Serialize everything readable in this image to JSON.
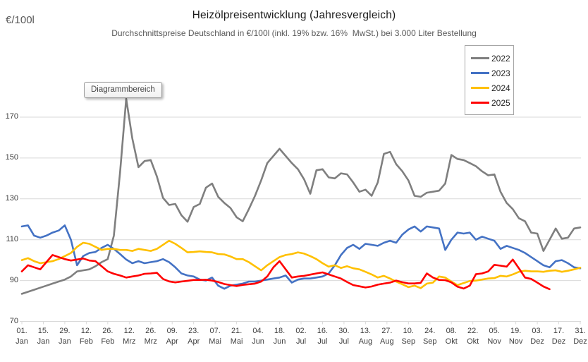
{
  "header": {
    "y_axis_unit_label": "€/100l",
    "title": "Heizölpreisentwicklung (Jahresvergleich)",
    "subtitle": "Durchschnittspreise Deutschland in €/100l (inkl. 19% bzw. 16%  MwSt.) bei 3.000 Liter Bestellung"
  },
  "tooltip": {
    "text": "Diagrammbereich"
  },
  "legend": {
    "position": "top-right",
    "items": [
      {
        "label": "2022",
        "color": "#7f7f7f"
      },
      {
        "label": "2023",
        "color": "#4472c4"
      },
      {
        "label": "2024",
        "color": "#ffc000"
      },
      {
        "label": "2025",
        "color": "#ff0000"
      }
    ]
  },
  "colors": {
    "gridline": "#d9d9d9",
    "axis_text": "#404040",
    "subtitle_text": "#595959"
  },
  "chart_data": {
    "type": "line",
    "title": "Heizölpreisentwicklung (Jahresvergleich)",
    "subtitle": "Durchschnittspreise Deutschland in €/100l (inkl. 19% bzw. 16% MwSt.) bei 3.000 Liter Bestellung",
    "ylabel": "€/100l",
    "grid": "horizontal",
    "legend_position": "top-right",
    "y_axis": {
      "ticks": [
        70,
        90,
        110,
        130,
        150,
        170
      ],
      "range": [
        70,
        185
      ]
    },
    "x_axis": {
      "range_days": [
        0,
        364
      ],
      "tick_interval_days": 14,
      "tick_labels": [
        [
          "01.",
          "Jan"
        ],
        [
          "15.",
          "Jan"
        ],
        [
          "29.",
          "Jan"
        ],
        [
          "12.",
          "Feb"
        ],
        [
          "26.",
          "Feb"
        ],
        [
          "12.",
          "Mrz"
        ],
        [
          "26.",
          "Mrz"
        ],
        [
          "09.",
          "Apr"
        ],
        [
          "23.",
          "Apr"
        ],
        [
          "07.",
          "Mai"
        ],
        [
          "21.",
          "Mai"
        ],
        [
          "04.",
          "Jun"
        ],
        [
          "18.",
          "Jun"
        ],
        [
          "02.",
          "Jul"
        ],
        [
          "16.",
          "Jul"
        ],
        [
          "30.",
          "Jul"
        ],
        [
          "13.",
          "Aug"
        ],
        [
          "27.",
          "Aug"
        ],
        [
          "10.",
          "Sep"
        ],
        [
          "24.",
          "Sep"
        ],
        [
          "08.",
          "Okt"
        ],
        [
          "22.",
          "Okt"
        ],
        [
          "05.",
          "Nov"
        ],
        [
          "19.",
          "Nov"
        ],
        [
          "03.",
          "Dez"
        ],
        [
          "17.",
          "Dez"
        ],
        [
          "31.",
          "Dez"
        ]
      ]
    },
    "sample_interval_days": 4,
    "series": [
      {
        "name": "2022",
        "color": "#7f7f7f",
        "start_day": 0,
        "values": [
          83.5,
          84.5,
          85.5,
          86.5,
          87.5,
          88.5,
          89.5,
          90.5,
          92,
          94.5,
          95,
          95.5,
          97,
          99,
          100.5,
          112,
          143,
          179,
          159.5,
          145.5,
          148.5,
          149,
          141,
          130.5,
          127,
          127.5,
          122,
          118.8,
          126,
          127.5,
          135.5,
          137.5,
          131,
          128,
          125.5,
          121,
          119,
          125,
          131.5,
          139,
          147.5,
          151,
          154.5,
          151,
          147.5,
          144.5,
          139.5,
          132.5,
          144,
          144.5,
          140.5,
          140,
          142.5,
          142,
          138,
          133.5,
          134.5,
          131.5,
          138,
          152,
          153,
          147,
          143.5,
          139,
          131.5,
          131,
          133,
          133.5,
          134,
          137.5,
          151.5,
          149.5,
          149,
          147.5,
          146,
          143.5,
          141.5,
          142,
          133.5,
          128,
          125,
          120.5,
          119,
          113.5,
          113,
          104.5,
          110,
          115.5,
          110.5,
          111,
          115.5,
          116
        ]
      },
      {
        "name": "2023",
        "color": "#4472c4",
        "start_day": 0,
        "values": [
          116.5,
          117,
          112,
          111,
          112,
          113.5,
          114.5,
          117,
          110,
          97.5,
          102,
          103.5,
          104,
          106,
          107.5,
          105.5,
          103,
          100.3,
          98.5,
          99.5,
          98.5,
          99,
          99.5,
          100.5,
          99,
          96.5,
          93.5,
          92.5,
          92,
          90.5,
          90,
          91.5,
          87.5,
          86,
          87.5,
          88,
          88.5,
          89.5,
          89.5,
          90,
          90.5,
          91,
          91.5,
          92.5,
          89,
          90.5,
          91,
          91,
          91.5,
          92,
          93.5,
          97.5,
          102.5,
          106,
          107.5,
          105.5,
          108,
          107.5,
          107,
          108.5,
          109.5,
          108.5,
          112.5,
          115,
          116.5,
          114,
          116.5,
          116,
          115.5,
          105,
          110,
          113.5,
          113,
          113.5,
          110,
          111.5,
          110.5,
          109.5,
          105.5,
          107,
          106,
          105,
          103.5,
          101.5,
          99.5,
          97.5,
          96.5,
          99.5,
          100,
          98.5,
          96.5,
          96
        ]
      },
      {
        "name": "2024",
        "color": "#ffc000",
        "start_day": 0,
        "values": [
          100,
          101,
          99.5,
          98.5,
          99,
          99.5,
          100.5,
          102,
          103.5,
          106.5,
          108.5,
          108,
          106.5,
          105,
          105.5,
          105.5,
          105,
          105,
          104.5,
          105.5,
          105,
          104.5,
          105.5,
          107.5,
          109.5,
          108,
          106,
          103.8,
          104,
          104.3,
          104,
          103.8,
          103,
          102.8,
          101.8,
          100.5,
          100.5,
          99,
          97,
          95,
          97.5,
          99.5,
          101.5,
          102.5,
          103,
          103.8,
          103.2,
          102,
          100.5,
          98.5,
          96.8,
          97.5,
          96.2,
          97,
          96,
          95.5,
          94.3,
          93,
          91.5,
          92.3,
          91,
          89.5,
          88.2,
          86.8,
          87.5,
          86.3,
          88.5,
          89,
          92,
          91.5,
          89.5,
          87.8,
          88.8,
          89.8,
          90,
          90.5,
          91,
          91.2,
          92.3,
          92,
          93,
          94.3,
          94.8,
          94.5,
          94.5,
          94.3,
          94.8,
          95,
          94.3,
          94.8,
          95.5,
          96.3
        ]
      },
      {
        "name": "2025",
        "color": "#ff0000",
        "start_day": 0,
        "values": [
          94.5,
          97.5,
          96.5,
          95.5,
          99,
          102.5,
          101.5,
          100.5,
          99.8,
          100.3,
          100.8,
          99.8,
          99.5,
          97,
          94.5,
          93.3,
          92.5,
          91.5,
          92,
          92.5,
          93.3,
          93.5,
          93.8,
          90.8,
          89.6,
          89.1,
          89.5,
          89.9,
          90.3,
          90.3,
          90.4,
          90,
          89.3,
          88.3,
          87.8,
          87.3,
          87.9,
          88.2,
          88.5,
          89.5,
          92,
          96.5,
          99.5,
          95.5,
          91.5,
          92,
          92.3,
          92.9,
          93.5,
          94,
          93,
          92,
          91,
          89.3,
          87.8,
          87.2,
          86.6,
          87.1,
          88,
          88.5,
          89,
          90,
          89.2,
          88.6,
          88.6,
          88.9,
          93.5,
          91.5,
          90.3,
          90.2,
          89.1,
          87,
          86.1,
          87.5,
          93.1,
          93.5,
          94.5,
          97.7,
          97.3,
          96.8,
          100.3,
          96,
          91.5,
          90.8,
          89,
          87.1,
          85.8
        ]
      }
    ]
  }
}
